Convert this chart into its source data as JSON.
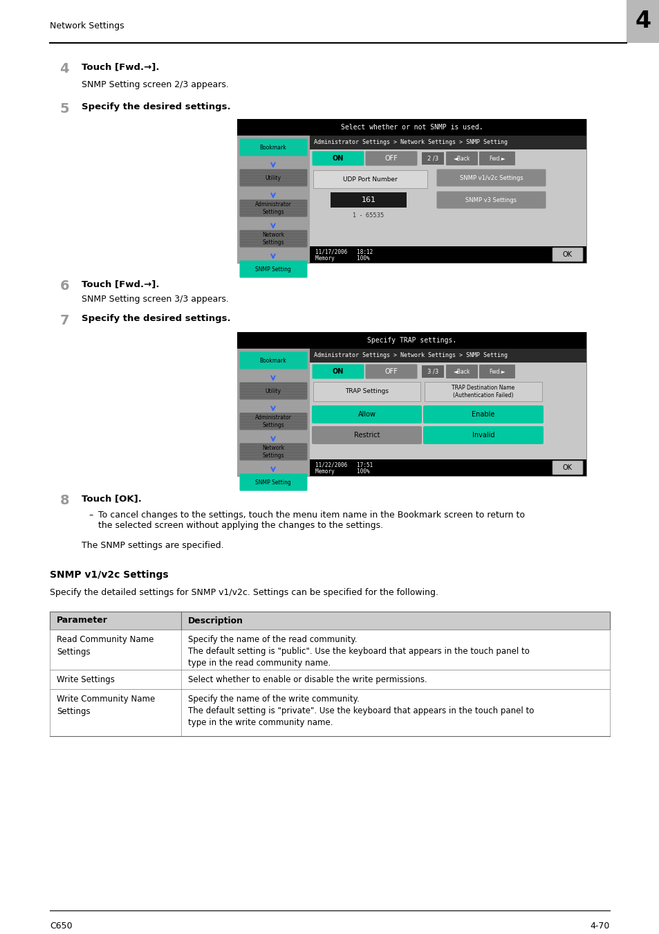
{
  "page_bg": "#ffffff",
  "header_text": "Network Settings",
  "header_chapter": "4",
  "footer_left": "C650",
  "footer_right": "4-70",
  "step4_number": "4",
  "step4_bold": "Touch [Fwd.→].",
  "step4_sub": "SNMP Setting screen 2/3 appears.",
  "step5_number": "5",
  "step5_bold": "Specify the desired settings.",
  "step6_number": "6",
  "step6_bold": "Touch [Fwd.→].",
  "step6_sub": "SNMP Setting screen 3/3 appears.",
  "step7_number": "7",
  "step7_bold": "Specify the desired settings.",
  "step8_number": "8",
  "step8_bold": "Touch [OK].",
  "step8_bullet": "To cancel changes to the settings, touch the menu item name in the Bookmark screen to return to\nthe selected screen without applying the changes to the settings.",
  "step8_note": "The SNMP settings are specified.",
  "section_title": "SNMP v1/v2c Settings",
  "section_intro": "Specify the detailed settings for SNMP v1/v2c. Settings can be specified for the following.",
  "table_header_col1": "Parameter",
  "table_header_col2": "Description",
  "table_header_bg": "#cccccc",
  "table_rows": [
    {
      "param": "Read Community Name\nSettings",
      "desc": "Specify the name of the read community.\nThe default setting is \"public\". Use the keyboard that appears in the touch panel to\ntype in the read community name."
    },
    {
      "param": "Write Settings",
      "desc": "Select whether to enable or disable the write permissions."
    },
    {
      "param": "Write Community Name\nSettings",
      "desc": "Specify the name of the write community.\nThe default setting is \"private\". Use the keyboard that appears in the touch panel to\ntype in the write community name."
    }
  ],
  "screen1_title": "Select whether or not SNMP is used.",
  "screen1_nav": "Administrator Settings > Network Settings > SNMP Setting",
  "screen1_page": "2 /3",
  "screen1_date": "11/17/2006   18:12",
  "screen1_mem": "Memory       100%",
  "screen2_title": "Specify TRAP settings.",
  "screen2_nav": "Administrator Settings > Network Settings > SNMP Setting",
  "screen2_page": "3 /3",
  "screen2_date": "11/22/2006   17:51",
  "screen2_mem": "Memory       100%",
  "teal": "#00c8a0",
  "dark_gray_btn": "#555555",
  "light_gray_btn": "#999999",
  "sidebar_gray": "#aaaaaa",
  "main_bg": "#bbbbbb",
  "nav_bg": "#444444",
  "black": "#000000",
  "white": "#ffffff"
}
